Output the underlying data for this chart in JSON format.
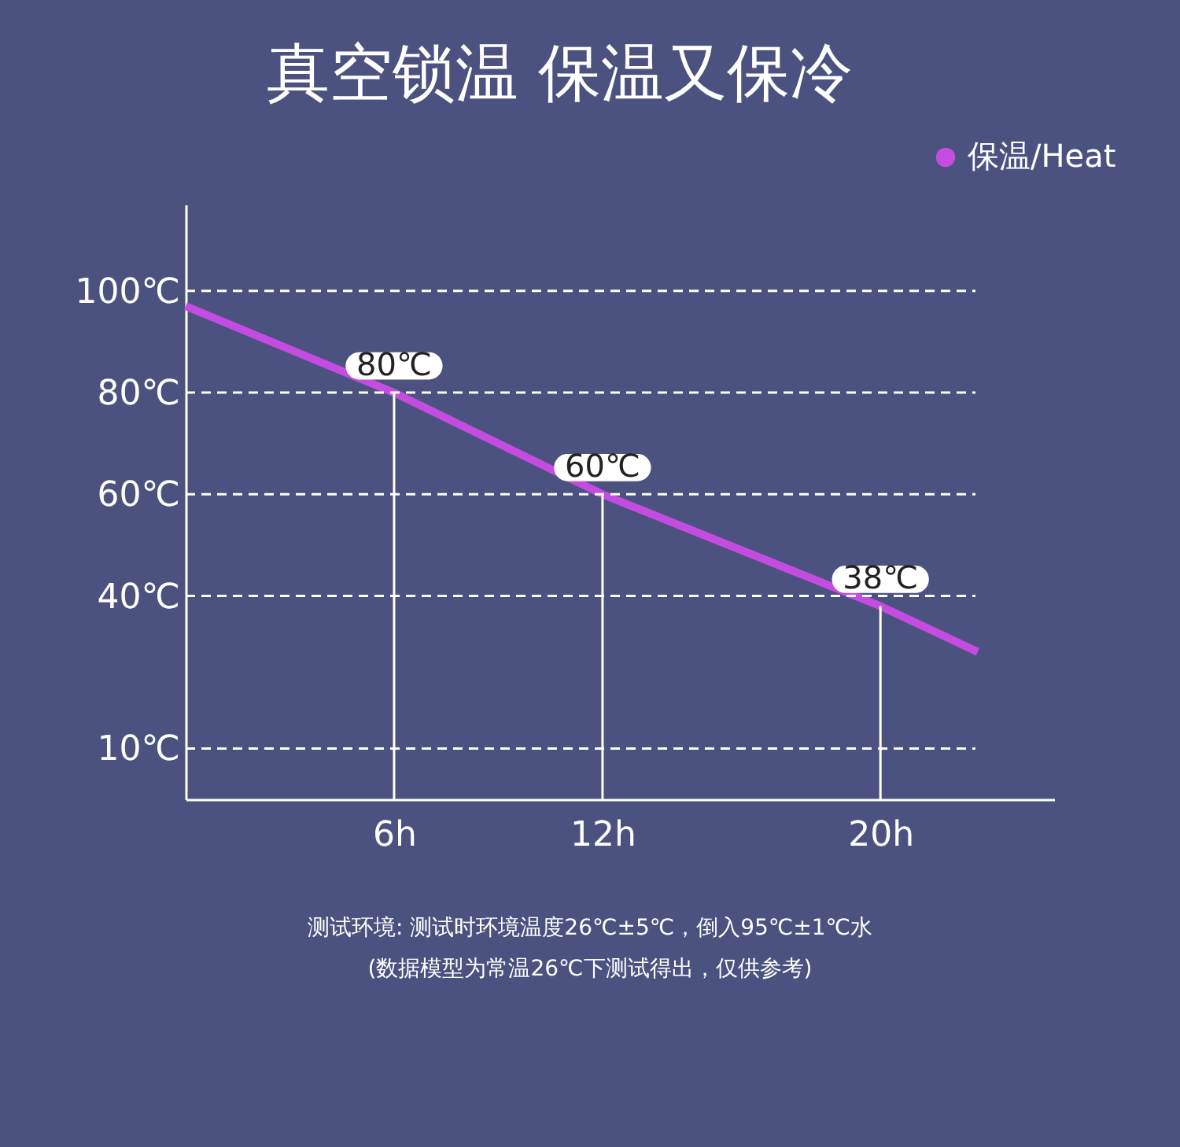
{
  "chart_data": {
    "type": "line",
    "title": "真空锁温 保温又保冷",
    "x": [
      0,
      6,
      12,
      20,
      22.8
    ],
    "series": [
      {
        "name": "保温/Heat",
        "color": "#c44ce0",
        "values": [
          97,
          80,
          60,
          38,
          29
        ],
        "value_labels": [
          null,
          "80℃",
          "60℃",
          "38℃",
          null
        ]
      }
    ],
    "xlim": [
      0,
      25
    ],
    "ylim": [
      0,
      117
    ],
    "xticks": [
      {
        "value": 6,
        "label": "6h"
      },
      {
        "value": 12,
        "label": "12h"
      },
      {
        "value": 20,
        "label": "20h"
      }
    ],
    "yticks": [
      {
        "value": 10,
        "label": "10℃"
      },
      {
        "value": 40,
        "label": "40℃"
      },
      {
        "value": 60,
        "label": "60℃"
      },
      {
        "value": 80,
        "label": "80℃"
      },
      {
        "value": 100,
        "label": "100℃"
      }
    ],
    "grid": "y",
    "legend": "top right",
    "marker": "none",
    "annotations": [
      "测试环境: 测试时环境温度26℃±5℃，倒入95℃±1℃水",
      "(数据模型为常温26℃下测试得出，仅供参考)"
    ]
  }
}
